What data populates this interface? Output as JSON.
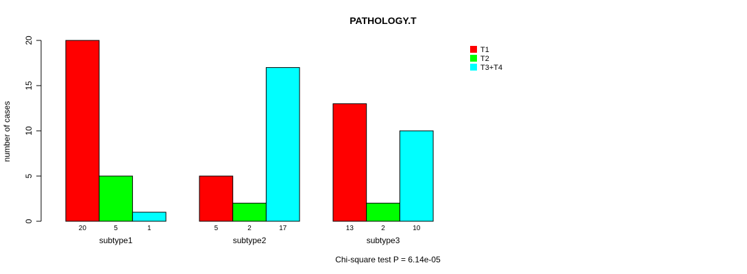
{
  "chart_data": {
    "type": "bar",
    "title": "PATHOLOGY.T",
    "ylabel": "number of cases",
    "ylim": [
      0,
      20
    ],
    "yticks": [
      0,
      5,
      10,
      15,
      20
    ],
    "categories": [
      "subtype1",
      "subtype2",
      "subtype3"
    ],
    "series": [
      {
        "name": "T1",
        "color": "#ff0000",
        "values": [
          20,
          5,
          13
        ]
      },
      {
        "name": "T2",
        "color": "#00ff00",
        "values": [
          5,
          2,
          2
        ]
      },
      {
        "name": "T3+T4",
        "color": "#00ffff",
        "values": [
          1,
          17,
          10
        ]
      }
    ],
    "legend_position": "top-right",
    "grid": false,
    "footnote": "Chi-square test P = 6.14e-05"
  }
}
